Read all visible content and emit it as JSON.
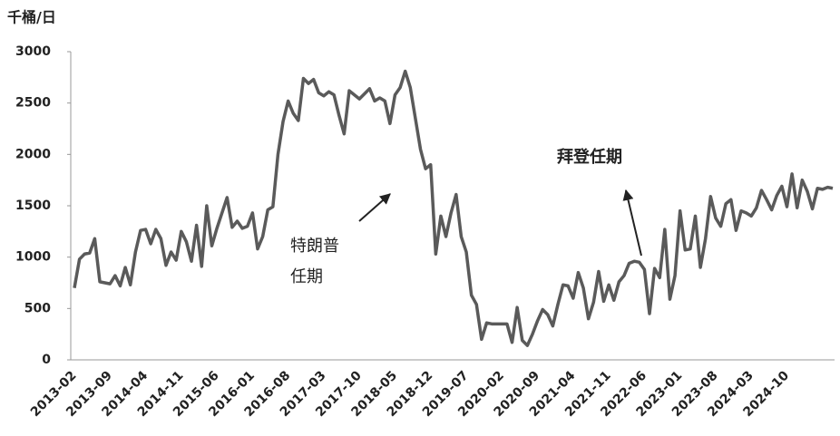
{
  "chart_data": {
    "type": "line",
    "y_label": "千桶/日",
    "categories": [
      "2013-02",
      null,
      null,
      null,
      null,
      null,
      null,
      "2013-09",
      null,
      null,
      null,
      null,
      null,
      null,
      "2014-04",
      null,
      null,
      null,
      null,
      null,
      null,
      "2014-11",
      null,
      null,
      null,
      null,
      null,
      null,
      "2015-06",
      null,
      null,
      null,
      null,
      null,
      null,
      "2016-01",
      null,
      null,
      null,
      null,
      null,
      null,
      "2016-08",
      null,
      null,
      null,
      null,
      null,
      null,
      "2017-03",
      null,
      null,
      null,
      null,
      null,
      null,
      "2017-10",
      null,
      null,
      null,
      null,
      null,
      null,
      "2018-05",
      null,
      null,
      null,
      null,
      null,
      null,
      "2018-12",
      null,
      null,
      null,
      null,
      null,
      null,
      "2019-07",
      null,
      null,
      null,
      null,
      null,
      null,
      "2020-02",
      null,
      null,
      null,
      null,
      null,
      null,
      "2020-09",
      null,
      null,
      null,
      null,
      null,
      null,
      "2021-04",
      null,
      null,
      null,
      null,
      null,
      null,
      "2021-11",
      null,
      null,
      null,
      null,
      null,
      null,
      "2022-06",
      null,
      null,
      null,
      null,
      null,
      null,
      "2023-01",
      null,
      null,
      null,
      null,
      null,
      null,
      "2023-08",
      null,
      null,
      null,
      null,
      null,
      null,
      "2024-03",
      null,
      null,
      null,
      null,
      null,
      null,
      "2024-10",
      null,
      null,
      null,
      null,
      null,
      null,
      null,
      null,
      null
    ],
    "values": [
      700,
      980,
      1030,
      1040,
      1180,
      760,
      750,
      740,
      820,
      720,
      900,
      730,
      1050,
      1260,
      1270,
      1130,
      1270,
      1180,
      920,
      1050,
      970,
      1250,
      1150,
      960,
      1310,
      910,
      1500,
      1110,
      1280,
      1430,
      1580,
      1290,
      1350,
      1280,
      1300,
      1430,
      1080,
      1200,
      1460,
      1490,
      2000,
      2320,
      2520,
      2400,
      2330,
      2740,
      2690,
      2730,
      2600,
      2570,
      2610,
      2580,
      2380,
      2200,
      2620,
      2580,
      2540,
      2590,
      2640,
      2520,
      2550,
      2520,
      2300,
      2580,
      2650,
      2810,
      2650,
      2350,
      2050,
      1860,
      1900,
      1030,
      1400,
      1200,
      1430,
      1610,
      1200,
      1050,
      630,
      540,
      200,
      360,
      350,
      350,
      350,
      350,
      170,
      510,
      190,
      140,
      250,
      380,
      490,
      440,
      330,
      540,
      730,
      720,
      600,
      850,
      700,
      400,
      560,
      860,
      570,
      730,
      580,
      760,
      820,
      940,
      960,
      950,
      880,
      450,
      890,
      800,
      1270,
      590,
      820,
      1450,
      1070,
      1080,
      1400,
      900,
      1180,
      1590,
      1380,
      1300,
      1520,
      1560,
      1260,
      1450,
      1430,
      1400,
      1480,
      1650,
      1560,
      1460,
      1600,
      1690,
      1490,
      1810,
      1480,
      1750,
      1640,
      1470,
      1670,
      1660,
      1680,
      1670
    ],
    "color": "#5a5a5a",
    "ylim": [
      0,
      3000
    ],
    "yticks": [
      0,
      500,
      1000,
      1500,
      2000,
      2500,
      3000
    ],
    "grid": false,
    "annotations": [
      {
        "lines": [
          "特朗普",
          "任期"
        ]
      },
      {
        "lines": [
          "拜登任期"
        ]
      }
    ]
  }
}
